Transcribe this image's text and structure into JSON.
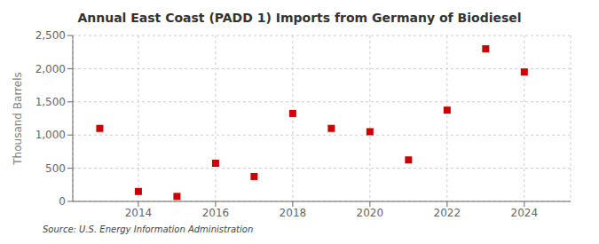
{
  "chart_data": {
    "type": "scatter",
    "title": "Annual East Coast (PADD 1) Imports from Germany of Biodiesel",
    "ylabel": "Thousand Barrels",
    "annotations": [
      "Source: U.S. Energy Information Administration"
    ],
    "x": [
      2013,
      2014,
      2015,
      2016,
      2017,
      2018,
      2019,
      2020,
      2021,
      2022,
      2023,
      2024
    ],
    "values": [
      1100,
      150,
      75,
      575,
      375,
      1325,
      1100,
      1050,
      625,
      1375,
      2300,
      1950
    ],
    "color": "#cc0000",
    "marker": "square",
    "xlim": [
      2012.3,
      2025.2
    ],
    "xticks": [
      2014,
      2016,
      2018,
      2020,
      2022,
      2024
    ],
    "ylim": [
      0,
      2500
    ],
    "yticks": [
      0,
      500,
      {
        "value": 1000,
        "label": "1,000"
      },
      {
        "value": 1500,
        "label": "1,500"
      },
      {
        "value": 2000,
        "label": "2,000"
      },
      {
        "value": 2500,
        "label": "2,500"
      }
    ],
    "grid": true
  }
}
